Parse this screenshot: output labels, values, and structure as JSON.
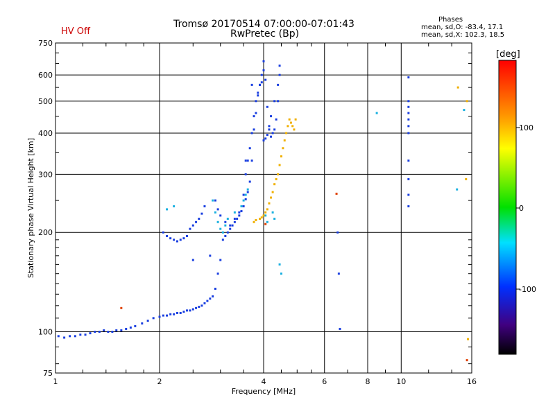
{
  "header": {
    "title": "Tromsø 20170514 07:00:00-07:01:43",
    "subtitle": "RwPretec (Bp)",
    "status": "HV Off",
    "phases": {
      "heading": "Phases",
      "line_o": "mean, sd,O: -83.4, 17.1",
      "line_x": "mean, sd,X: 102.3, 18.5"
    }
  },
  "colorbar": {
    "unit": "[deg]",
    "ticks": [
      "100",
      "0",
      "-100"
    ],
    "min": -180,
    "max": 180
  },
  "colors": {
    "blue": "#1a3fe0",
    "cyan": "#19b0e0",
    "orange": "#f0b000",
    "purple": "#4020b0"
  },
  "chart_data": {
    "type": "scatter",
    "xlabel": "Frequency [MHz]",
    "ylabel": "Stationary phase Virtual Height [km]",
    "x_scale": "log",
    "y_scale": "log",
    "xlim": [
      1,
      16
    ],
    "ylim": [
      75,
      750
    ],
    "x_ticks": [
      "1",
      "2",
      "4",
      "6",
      "8",
      "10",
      "16"
    ],
    "y_ticks": [
      "750",
      "600",
      "500",
      "400",
      "300",
      "200",
      "100",
      "75"
    ],
    "grid": true,
    "series": [
      {
        "color": "#1a3fe0",
        "x": [
          1.02,
          1.06,
          1.1,
          1.14,
          1.18,
          1.22,
          1.26,
          1.3,
          1.34,
          1.38,
          1.42,
          1.46,
          1.5,
          1.55,
          1.6,
          1.65,
          1.7,
          1.78,
          1.85,
          1.92,
          2.0,
          2.05,
          2.1,
          2.15,
          2.2,
          2.25,
          2.3,
          2.35,
          2.4,
          2.45,
          2.5,
          2.55,
          2.6,
          2.65,
          2.7,
          2.75,
          2.8,
          2.85,
          2.9,
          2.95,
          3.0,
          3.05,
          3.1,
          3.15,
          3.2,
          3.25,
          3.3,
          3.35,
          3.4,
          3.45,
          3.5,
          3.55,
          3.6,
          3.65,
          3.7,
          3.75,
          3.8,
          3.85,
          3.9,
          3.95,
          4.0,
          4.05,
          4.1,
          4.15,
          4.2,
          4.25,
          4.3,
          4.35,
          4.4,
          4.45,
          2.05,
          2.1,
          2.15,
          2.2,
          2.25,
          2.3,
          2.35,
          2.4,
          2.45,
          2.5,
          2.55,
          2.6,
          2.65,
          2.7,
          2.9,
          2.95,
          3.0,
          3.1,
          3.2,
          3.3,
          3.4,
          3.5,
          3.55,
          3.6,
          3.65,
          3.7,
          3.75,
          3.8,
          3.85,
          3.9,
          3.95,
          4.0,
          4.05,
          4.1,
          4.15,
          4.2,
          4.3,
          4.4,
          4.45,
          10.5,
          10.5,
          10.5,
          10.5,
          10.5,
          10.5,
          10.5,
          10.5,
          10.5,
          10.5,
          10.5,
          6.55,
          6.6,
          6.65,
          2.5,
          2.8,
          3.55,
          3.7,
          4.0
        ],
        "y": [
          97,
          96,
          97,
          97,
          98,
          98,
          99,
          100,
          100,
          101,
          100,
          100,
          101,
          101,
          102,
          103,
          104,
          106,
          108,
          110,
          111,
          112,
          112,
          113,
          113,
          114,
          114,
          115,
          116,
          116,
          117,
          118,
          119,
          120,
          122,
          124,
          126,
          128,
          135,
          150,
          165,
          190,
          195,
          200,
          205,
          210,
          215,
          220,
          225,
          232,
          240,
          252,
          265,
          285,
          330,
          410,
          460,
          520,
          560,
          600,
          620,
          580,
          480,
          410,
          390,
          400,
          410,
          440,
          500,
          640,
          200,
          195,
          192,
          190,
          188,
          190,
          192,
          195,
          205,
          210,
          215,
          220,
          228,
          240,
          250,
          235,
          225,
          215,
          210,
          220,
          230,
          260,
          300,
          330,
          360,
          400,
          450,
          500,
          530,
          560,
          570,
          380,
          385,
          395,
          420,
          450,
          500,
          560,
          600,
          590,
          500,
          480,
          460,
          440,
          420,
          400,
          330,
          290,
          260,
          240,
          200,
          150,
          102,
          165,
          170,
          330,
          560,
          660
        ]
      },
      {
        "color": "#19b0e0",
        "x": [
          2.1,
          2.2,
          2.85,
          2.9,
          2.95,
          3.0,
          3.05,
          3.1,
          3.15,
          3.3,
          3.45,
          3.5,
          3.55,
          3.6,
          4.05,
          4.1,
          4.25,
          4.3,
          4.45,
          4.5,
          8.5,
          14.5,
          15.2
        ],
        "y": [
          235,
          240,
          250,
          230,
          215,
          205,
          200,
          210,
          220,
          230,
          240,
          250,
          260,
          270,
          225,
          215,
          230,
          220,
          160,
          150,
          460,
          270,
          470
        ],
        "name": ""
      },
      {
        "color": "#f0b000",
        "x": [
          3.9,
          3.95,
          4.0,
          4.05,
          4.1,
          4.15,
          4.2,
          4.25,
          4.3,
          4.35,
          4.4,
          4.45,
          4.5,
          4.55,
          4.6,
          4.65,
          4.7,
          4.75,
          4.8,
          4.85,
          4.9,
          4.95,
          3.75,
          3.8,
          14.6,
          15.4,
          15.5,
          15.6
        ],
        "y": [
          220,
          222,
          225,
          230,
          235,
          245,
          255,
          265,
          280,
          290,
          300,
          320,
          340,
          360,
          380,
          400,
          420,
          440,
          430,
          420,
          410,
          440,
          215,
          218,
          550,
          290,
          500,
          95
        ],
        "name": ""
      },
      {
        "color": "#e04000",
        "x": [
          1.55,
          4.05,
          6.5,
          15.5
        ],
        "y": [
          118,
          212,
          262,
          82
        ]
      }
    ]
  }
}
